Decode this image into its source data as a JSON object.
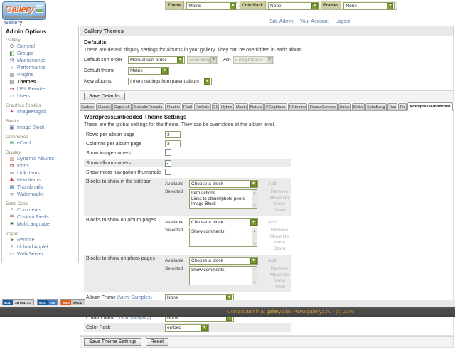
{
  "header": {
    "logo_title": "Gallery",
    "logo_tagline": "your photos on your website",
    "selectors": [
      {
        "label": "Theme",
        "value": "Matrix"
      },
      {
        "label": "ColorPack",
        "value": "None"
      },
      {
        "label": "Frames",
        "value": "None"
      }
    ],
    "breadcrumb": "Gallery",
    "user_links": [
      "Site Admin",
      "Your Account",
      "Logout"
    ]
  },
  "sidebar": {
    "title": "Admin Options",
    "groups": [
      {
        "label": "Gallery",
        "items": [
          {
            "label": "General",
            "icon": "gear-icon"
          },
          {
            "label": "Groups",
            "icon": "groups-icon"
          },
          {
            "label": "Maintenance",
            "icon": "maintenance-icon"
          },
          {
            "label": "Performance",
            "icon": "performance-icon"
          },
          {
            "label": "Plugins",
            "icon": "plugins-icon"
          },
          {
            "label": "Themes",
            "icon": "themes-icon",
            "current": true
          },
          {
            "label": "URL Rewrite",
            "icon": "url-rewrite-icon"
          },
          {
            "label": "Users",
            "icon": "users-icon"
          }
        ]
      },
      {
        "label": "Graphics Toolkits",
        "items": [
          {
            "label": "ImageMagick",
            "icon": "imagemagick-icon"
          }
        ]
      },
      {
        "label": "Blocks",
        "items": [
          {
            "label": "Image Block",
            "icon": "image-block-icon"
          }
        ]
      },
      {
        "label": "Commerce",
        "items": [
          {
            "label": "eCard",
            "icon": "ecard-icon"
          }
        ]
      },
      {
        "label": "Display",
        "items": [
          {
            "label": "Dynamic Albums",
            "icon": "dynamic-albums-icon"
          },
          {
            "label": "Icons",
            "icon": "icons-icon"
          },
          {
            "label": "Link Items",
            "icon": "link-items-icon"
          },
          {
            "label": "New Items",
            "icon": "new-items-icon"
          },
          {
            "label": "Thumbnails",
            "icon": "thumbnails-icon"
          },
          {
            "label": "Watermarks",
            "icon": "watermarks-icon"
          }
        ]
      },
      {
        "label": "Extra Data",
        "items": [
          {
            "label": "Comments",
            "icon": "comments-icon"
          },
          {
            "label": "Custom Fields",
            "icon": "custom-fields-icon"
          },
          {
            "label": "MultiLanguage",
            "icon": "multilanguage-icon"
          }
        ]
      },
      {
        "label": "Import",
        "items": [
          {
            "label": "Remote",
            "icon": "remote-icon"
          },
          {
            "label": "Upload Applet",
            "icon": "upload-applet-icon"
          },
          {
            "label": "Web/Server",
            "icon": "web-server-icon"
          }
        ]
      }
    ]
  },
  "main": {
    "page_title": "Gallery Themes",
    "defaults": {
      "title": "Defaults",
      "description": "These are default display settings for albums in your gallery. They can be overridden in each album.",
      "sort_label": "Default sort order",
      "sort_value": "Manual sort order",
      "sort_direction": "Ascending",
      "with_label": "with",
      "preset_value": "« no preset »",
      "theme_label": "Default theme",
      "theme_value": "Matrix",
      "albums_label": "New albums",
      "albums_value": "Inherit settings from parent album",
      "save_button": "Save Defaults"
    },
    "tabs": {
      "items": [
        "Carbon",
        "Classic",
        "CopyLeft",
        "EclecticThreads",
        "Floatrix",
        "Fluid",
        "ForSale",
        "G1",
        "Hybrid",
        "Matrix",
        "Nature",
        "PGlightbox",
        "PGtheme",
        "RoundCorners",
        "Siriux",
        "Slider",
        "SplatBang",
        "Tian",
        "Tile",
        "WordpressEmbedded"
      ],
      "active": "WordpressEmbedded"
    },
    "settings": {
      "title": "WordpressEmbedded Theme Settings",
      "description": "These are the global settings for the theme. They can be overridden at the album level.",
      "rows_per_page": {
        "label": "Rows per album page",
        "value": "3"
      },
      "cols_per_page": {
        "label": "Columns per album page",
        "value": "3"
      },
      "show_image_owners": {
        "label": "Show image owners",
        "checked": false
      },
      "show_album_owners": {
        "label": "Show album owners",
        "checked": true
      },
      "show_micro_nav": {
        "label": "Show micro navigation thumbnails",
        "checked": false
      },
      "available_label": "Available",
      "selected_label": "Selected",
      "choose_block": "Choose a block",
      "add_label": "Add",
      "actions": [
        "Remove",
        "Move Up",
        "Move Down"
      ],
      "blocks_sidebar": {
        "label": "Blocks to show in the sidebar",
        "selected": [
          "Item actions",
          "Links to album/photo peers",
          "Image Block"
        ]
      },
      "blocks_album": {
        "label": "Blocks to show on album pages",
        "selected": [
          "Show comments"
        ]
      },
      "blocks_photo": {
        "label": "Blocks to show on photo pages",
        "selected": [
          "Show comments"
        ]
      },
      "album_frame": {
        "label": "Album Frame",
        "link": "(View Samples)",
        "value": "None"
      },
      "item_frame": {
        "label": "Item Frame",
        "link": "(View Samples)",
        "value": "None"
      },
      "photo_frame": {
        "label": "Photo Frame",
        "link": "(View Samples)",
        "value": "None"
      },
      "color_pack": {
        "label": "Color Pack",
        "value": "embed"
      },
      "save_button": "Save Theme Settings",
      "reset_button": "Reset"
    }
  },
  "footer": {
    "badges": [
      {
        "name": "xhtml-badge",
        "style": "badge-xhtml",
        "left": "W3C",
        "right": "XHTML 1.0"
      },
      {
        "name": "css-badge",
        "style": "badge-css",
        "left": "W3C",
        "right": "css"
      },
      {
        "name": "rss-badge",
        "style": "badge-rss",
        "left": "RSS",
        "right": "VALID"
      }
    ],
    "contact_prefix": "Contact ",
    "contact_link": "admin at gallery2.hu",
    "separator": " - ",
    "site_link": "www.gallery2.hu",
    "copyright": " - (c) 2006"
  }
}
